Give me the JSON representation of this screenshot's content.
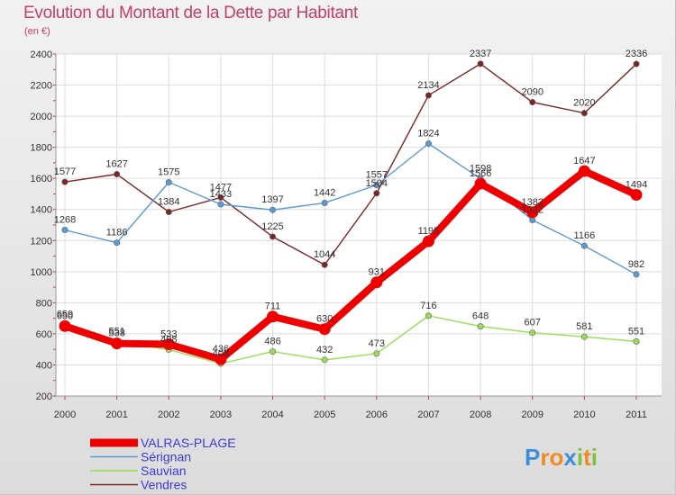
{
  "title": "Evolution du Montant de la Dette par Habitant",
  "subtitle": "(en €)",
  "logo_text": "Proxiti",
  "chart_data": {
    "type": "line",
    "title": "Evolution du Montant de la Dette par Habitant",
    "subtitle": "(en €)",
    "x": [
      "2000",
      "2001",
      "2002",
      "2003",
      "2004",
      "2005",
      "2006",
      "2007",
      "2008",
      "2009",
      "2010",
      "2011"
    ],
    "ylim": [
      200,
      2400
    ],
    "yticks": [
      200,
      400,
      600,
      800,
      1000,
      1200,
      1400,
      1600,
      1800,
      2000,
      2200,
      2400
    ],
    "grid": true,
    "legend_position": "bottom-left",
    "series": [
      {
        "name": "VALRAS-PLAGE",
        "color": "#ee0000",
        "values": [
          650,
          538,
          533,
          436,
          711,
          630,
          931,
          1195,
          1566,
          1382,
          1647,
          1494
        ]
      },
      {
        "name": "Sérignan",
        "color": "#5a9bd5",
        "values": [
          1268,
          1186,
          1575,
          1433,
          1397,
          1442,
          1557,
          1824,
          1598,
          1332,
          1166,
          982
        ]
      },
      {
        "name": "Sauvian",
        "color": "#99dd55",
        "values": [
          659,
          551,
          498,
          408,
          486,
          432,
          473,
          716,
          648,
          607,
          581,
          551
        ]
      },
      {
        "name": "Vendres",
        "color": "#7a2626",
        "values": [
          1577,
          1627,
          1384,
          1477,
          1225,
          1044,
          1504,
          2134,
          2337,
          2090,
          2020,
          2336
        ]
      }
    ]
  }
}
